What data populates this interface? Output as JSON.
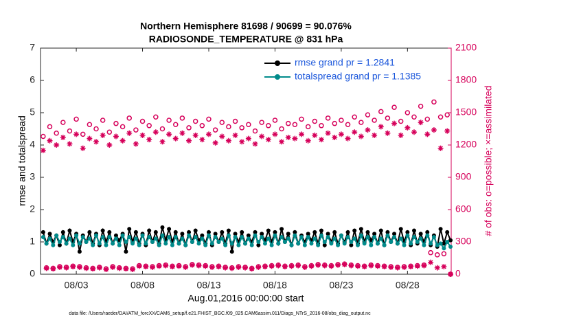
{
  "chart_data": {
    "type": "line",
    "title": [
      "Northern Hemisphere 81698 / 90699 = 90.076%",
      "RADIOSONDE_TEMPERATURE @ 831 hPa"
    ],
    "xlabel": "Aug.01,2016 00:00:00 start",
    "ylabel": "rmse and totalspread",
    "y2label": "# of obs: o=possible; ×=assimilated",
    "footnote": "data file: /Users/raeder/DAI/ATM_forcXX/CAM6_setup/f.e21.FHIST_BGC.f09_025.CAM6assim.011/Diags_NTrS_2016-08/obs_diag_output.nc",
    "xlim": [
      0.3,
      31.3
    ],
    "xticks": [
      {
        "value": 3,
        "label": "08/03"
      },
      {
        "value": 8,
        "label": "08/08"
      },
      {
        "value": 13,
        "label": "08/13"
      },
      {
        "value": 18,
        "label": "08/18"
      },
      {
        "value": 23,
        "label": "08/23"
      },
      {
        "value": 28,
        "label": "08/28"
      }
    ],
    "ylim": [
      0,
      7
    ],
    "yticks": [
      0,
      1,
      2,
      3,
      4,
      5,
      6,
      7
    ],
    "y2lim": [
      0,
      2100
    ],
    "y2ticks": [
      0,
      300,
      600,
      900,
      1200,
      1500,
      1800,
      2100
    ],
    "y2color": "#d6005a",
    "legend": "upper right",
    "legend_text_color": "#1a56db",
    "x": [
      0.5,
      0.75,
      1,
      1.25,
      1.5,
      1.75,
      2,
      2.25,
      2.5,
      2.75,
      3,
      3.25,
      3.5,
      3.75,
      4,
      4.25,
      4.5,
      4.75,
      5,
      5.25,
      5.5,
      5.75,
      6,
      6.25,
      6.5,
      6.75,
      7,
      7.25,
      7.5,
      7.75,
      8,
      8.25,
      8.5,
      8.75,
      9,
      9.25,
      9.5,
      9.75,
      10,
      10.25,
      10.5,
      10.75,
      11,
      11.25,
      11.5,
      11.75,
      12,
      12.25,
      12.5,
      12.75,
      13,
      13.25,
      13.5,
      13.75,
      14,
      14.25,
      14.5,
      14.75,
      15,
      15.25,
      15.5,
      15.75,
      16,
      16.25,
      16.5,
      16.75,
      17,
      17.25,
      17.5,
      17.75,
      18,
      18.25,
      18.5,
      18.75,
      19,
      19.25,
      19.5,
      19.75,
      20,
      20.25,
      20.5,
      20.75,
      21,
      21.25,
      21.5,
      21.75,
      22,
      22.25,
      22.5,
      22.75,
      23,
      23.25,
      23.5,
      23.75,
      24,
      24.25,
      24.5,
      24.75,
      25,
      25.25,
      25.5,
      25.75,
      26,
      26.25,
      26.5,
      26.75,
      27,
      27.25,
      27.5,
      27.75,
      28,
      28.25,
      28.5,
      28.75,
      29,
      29.25,
      29.5,
      29.75,
      30,
      30.25,
      30.5,
      30.75,
      31,
      31.25
    ],
    "series": [
      {
        "name": "rmse grand pr = 1.2841",
        "color": "#000000",
        "marker": "dot",
        "line": true,
        "values": [
          1.3,
          0.95,
          1.25,
          1.0,
          1.2,
          0.9,
          1.3,
          0.95,
          1.35,
          1.0,
          1.25,
          0.7,
          1.2,
          1.0,
          1.3,
          0.95,
          1.25,
          0.9,
          1.35,
          1.0,
          1.3,
          0.95,
          1.2,
          1.05,
          1.25,
          0.7,
          1.4,
          1.0,
          1.3,
          0.95,
          1.25,
          0.9,
          1.35,
          1.0,
          1.3,
          0.95,
          1.45,
          1.05,
          1.4,
          1.0,
          1.3,
          0.95,
          1.25,
          0.9,
          1.3,
          1.0,
          1.35,
          1.05,
          1.2,
          0.95,
          1.3,
          0.9,
          1.25,
          1.0,
          1.3,
          0.95,
          1.35,
          0.7,
          1.25,
          1.0,
          1.3,
          0.95,
          1.2,
          1.0,
          1.3,
          0.9,
          1.25,
          1.05,
          1.35,
          1.0,
          1.3,
          0.95,
          1.4,
          1.0,
          1.25,
          0.9,
          1.3,
          0.95,
          1.2,
          1.0,
          1.25,
          1.05,
          1.3,
          0.95,
          1.35,
          0.9,
          1.25,
          1.0,
          1.3,
          0.95,
          1.2,
          1.0,
          1.3,
          0.9,
          1.35,
          0.95,
          1.4,
          1.0,
          1.3,
          1.05,
          1.25,
          0.95,
          1.35,
          0.9,
          1.3,
          1.0,
          1.25,
          0.95,
          1.4,
          1.0,
          1.3,
          0.9,
          1.35,
          0.95,
          1.25,
          1.0,
          1.3,
          0.9,
          1.2,
          0.85,
          1.4,
          0.95,
          1.3,
          1.05
        ]
      },
      {
        "name": "totalspread grand pr = 1.1385",
        "color": "#008b8b",
        "marker": "dot",
        "line": true,
        "values": [
          1.15,
          0.95,
          1.1,
          0.9,
          1.2,
          1.0,
          1.15,
          0.95,
          1.1,
          0.9,
          1.2,
          0.95,
          1.15,
          1.0,
          1.1,
          0.9,
          1.2,
          0.95,
          1.15,
          0.9,
          1.15,
          0.95,
          1.1,
          0.9,
          1.2,
          1.0,
          1.15,
          0.95,
          1.1,
          0.9,
          1.2,
          0.95,
          1.15,
          1.0,
          1.1,
          0.9,
          1.2,
          0.95,
          1.15,
          0.9,
          1.15,
          0.95,
          1.1,
          0.9,
          1.2,
          1.0,
          1.15,
          0.95,
          1.1,
          0.9,
          1.2,
          0.95,
          1.15,
          1.0,
          1.1,
          0.9,
          1.2,
          0.95,
          1.15,
          0.9,
          1.15,
          0.95,
          1.1,
          0.9,
          1.2,
          1.0,
          1.15,
          0.95,
          1.1,
          0.9,
          1.2,
          0.95,
          1.15,
          1.0,
          1.1,
          0.9,
          1.2,
          0.95,
          1.15,
          0.9,
          1.15,
          0.95,
          1.1,
          0.9,
          1.2,
          1.0,
          1.15,
          0.95,
          1.1,
          0.9,
          1.2,
          0.95,
          1.15,
          1.0,
          1.1,
          0.9,
          1.2,
          0.95,
          1.15,
          0.9,
          1.15,
          0.95,
          1.1,
          0.9,
          1.2,
          1.0,
          1.15,
          0.95,
          1.1,
          0.9,
          1.2,
          0.95,
          1.15,
          1.0,
          1.1,
          0.9,
          1.2,
          0.95,
          1.15,
          0.9,
          0.95,
          0.8,
          1.0,
          0.85
        ]
      },
      {
        "color": "#d6005a",
        "marker": "circle",
        "axis": "y2",
        "values": [
          1280,
          60,
          1370,
          55,
          1310,
          70,
          1410,
          65,
          1330,
          75,
          1440,
          70,
          1300,
          60,
          1390,
          55,
          1350,
          65,
          1430,
          50,
          1320,
          70,
          1400,
          60,
          1370,
          55,
          1450,
          50,
          1340,
          80,
          1420,
          75,
          1380,
          70,
          1460,
          80,
          1350,
          85,
          1430,
          75,
          1390,
          80,
          1450,
          70,
          1360,
          90,
          1420,
          85,
          1380,
          80,
          1440,
          70,
          1340,
          75,
          1410,
          65,
          1370,
          60,
          1420,
          70,
          1360,
          65,
          1390,
          55,
          1330,
          70,
          1410,
          75,
          1380,
          80,
          1430,
          85,
          1350,
          75,
          1400,
          80,
          1390,
          85,
          1440,
          70,
          1370,
          80,
          1420,
          90,
          1380,
          85,
          1450,
          80,
          1400,
          90,
          1430,
          95,
          1390,
          85,
          1460,
          80,
          1410,
          75,
          1480,
          85,
          1430,
          80,
          1510,
          75,
          1450,
          70,
          1550,
          65,
          1420,
          70,
          1500,
          75,
          1460,
          80,
          1560,
          85,
          1440,
          200,
          1600,
          180,
          1460,
          190,
          1480,
          0
        ]
      },
      {
        "color": "#d6005a",
        "marker": "asterisk",
        "axis": "y2",
        "values": [
          1150,
          55,
          1240,
          50,
          1200,
          65,
          1270,
          60,
          1210,
          70,
          1300,
          65,
          1170,
          55,
          1260,
          50,
          1230,
          60,
          1290,
          45,
          1200,
          65,
          1280,
          55,
          1240,
          50,
          1310,
          45,
          1210,
          75,
          1290,
          70,
          1250,
          65,
          1320,
          75,
          1230,
          80,
          1300,
          70,
          1260,
          75,
          1310,
          65,
          1240,
          85,
          1290,
          80,
          1250,
          75,
          1300,
          65,
          1220,
          70,
          1280,
          60,
          1240,
          55,
          1290,
          65,
          1230,
          60,
          1260,
          50,
          1210,
          65,
          1280,
          70,
          1250,
          75,
          1300,
          80,
          1230,
          70,
          1270,
          75,
          1260,
          80,
          1300,
          65,
          1240,
          75,
          1290,
          85,
          1250,
          80,
          1310,
          75,
          1270,
          85,
          1300,
          90,
          1260,
          80,
          1320,
          75,
          1280,
          70,
          1340,
          80,
          1290,
          75,
          1370,
          70,
          1310,
          65,
          1400,
          60,
          1290,
          65,
          1360,
          70,
          1320,
          75,
          1410,
          80,
          1300,
          110,
          1340,
          60,
          1170,
          70,
          1330,
          0
        ]
      }
    ]
  }
}
